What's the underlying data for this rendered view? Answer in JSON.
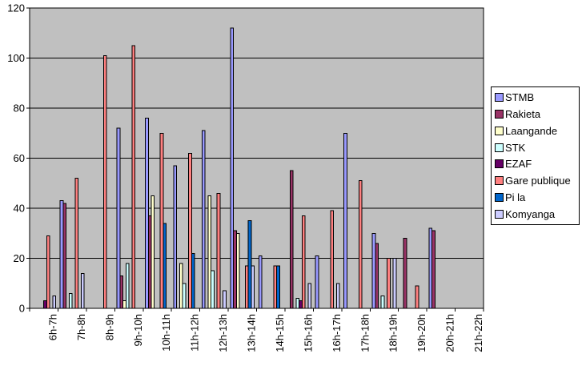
{
  "chart_data": {
    "type": "bar",
    "title": "",
    "categories": [
      "6h-7h",
      "7h-8h",
      "8h-9h",
      "9h-10h",
      "10h-11h",
      "11h-12h",
      "12h-13h",
      "13h-14h",
      "14h-15h",
      "15h-16h",
      "16h-17h",
      "17h-18h",
      "18h-19h",
      "19h-20h",
      "20h-21h",
      "21h-22h"
    ],
    "series": [
      {
        "name": "STMB",
        "color": "#9999FF",
        "values": [
          0,
          43,
          0,
          72,
          76,
          57,
          71,
          112,
          21,
          0,
          21,
          70,
          30,
          0,
          32,
          0
        ]
      },
      {
        "name": "Rakieta",
        "color": "#993366",
        "values": [
          0,
          42,
          0,
          13,
          37,
          0,
          0,
          31,
          0,
          55,
          0,
          0,
          26,
          28,
          31,
          0
        ]
      },
      {
        "name": "Laangande",
        "color": "#FFFFCC",
        "values": [
          0,
          0,
          0,
          3,
          45,
          18,
          45,
          30,
          0,
          0,
          0,
          0,
          0,
          0,
          0,
          0
        ]
      },
      {
        "name": "STK",
        "color": "#CCFFFF",
        "values": [
          0,
          6,
          0,
          18,
          0,
          10,
          15,
          0,
          0,
          4,
          0,
          0,
          5,
          0,
          0,
          0
        ]
      },
      {
        "name": "EZAF",
        "color": "#660066",
        "values": [
          3,
          0,
          0,
          0,
          0,
          0,
          0,
          0,
          0,
          3,
          0,
          0,
          0,
          0,
          0,
          0
        ]
      },
      {
        "name": "Gare publique",
        "color": "#FF8080",
        "values": [
          29,
          52,
          101,
          105,
          70,
          62,
          46,
          17,
          17,
          37,
          39,
          51,
          20,
          9,
          0,
          0
        ]
      },
      {
        "name": "Pi la",
        "color": "#0066CC",
        "values": [
          0,
          0,
          0,
          0,
          34,
          22,
          0,
          35,
          17,
          0,
          0,
          0,
          0,
          0,
          0,
          0
        ]
      },
      {
        "name": "Komyanga",
        "color": "#CCCCFF",
        "values": [
          5,
          14,
          0,
          0,
          0,
          0,
          7,
          17,
          0,
          10,
          10,
          0,
          20,
          0,
          0,
          0
        ]
      }
    ],
    "xlabel": "",
    "ylabel": "",
    "ylim": [
      0,
      120
    ],
    "ytick_step": 20,
    "ytick_labels": [
      "0",
      "20",
      "40",
      "60",
      "80",
      "100",
      "120"
    ],
    "grid": "horizontal",
    "plot_bg_color": "#C0C0C0",
    "gridline_color": "#000000",
    "legend_position": "right"
  }
}
